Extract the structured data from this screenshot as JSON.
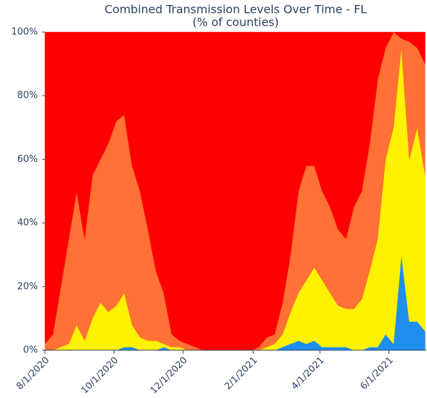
{
  "chart_data": {
    "type": "stacked_area",
    "title": "Combined Transmission Levels Over Time - FL",
    "subtitle": "(% of counties)",
    "x": [
      "2020-08-01",
      "2020-08-08",
      "2020-08-15",
      "2020-08-22",
      "2020-08-29",
      "2020-09-05",
      "2020-09-12",
      "2020-09-19",
      "2020-09-26",
      "2020-10-03",
      "2020-10-10",
      "2020-10-17",
      "2020-10-24",
      "2020-10-31",
      "2020-11-07",
      "2020-11-14",
      "2020-11-21",
      "2020-11-28",
      "2020-12-05",
      "2020-12-12",
      "2020-12-19",
      "2020-12-26",
      "2021-01-02",
      "2021-01-09",
      "2021-01-16",
      "2021-01-23",
      "2021-01-30",
      "2021-02-06",
      "2021-02-13",
      "2021-02-20",
      "2021-02-27",
      "2021-03-06",
      "2021-03-13",
      "2021-03-20",
      "2021-03-27",
      "2021-04-03",
      "2021-04-10",
      "2021-04-17",
      "2021-04-24",
      "2021-05-01",
      "2021-05-08",
      "2021-05-15",
      "2021-05-22",
      "2021-05-29",
      "2021-06-05",
      "2021-06-12",
      "2021-06-19",
      "2021-06-26",
      "2021-07-03"
    ],
    "series": [
      {
        "color": "#1f8ef1",
        "values": [
          0,
          0,
          0,
          0,
          0,
          0,
          0,
          0,
          0,
          0,
          1,
          1,
          0,
          0,
          0,
          1,
          0,
          0,
          0,
          0,
          0,
          0,
          0,
          0,
          0,
          0,
          0,
          0,
          0,
          0,
          1,
          2,
          3,
          2,
          3,
          1,
          1,
          1,
          1,
          0,
          0,
          1,
          1,
          5,
          2,
          30,
          9,
          9,
          6
        ]
      },
      {
        "color": "#fff200",
        "values": [
          0,
          0,
          1,
          2,
          8,
          3,
          10,
          15,
          12,
          14,
          17,
          7,
          4,
          3,
          3,
          1,
          1,
          1,
          0,
          0,
          0,
          0,
          0,
          0,
          0,
          0,
          0,
          0,
          1,
          2,
          4,
          10,
          15,
          20,
          23,
          21,
          17,
          13,
          12,
          13,
          16,
          24,
          34,
          55,
          68,
          65,
          51,
          61,
          49
        ]
      },
      {
        "color": "#ff7134",
        "values": [
          2,
          5,
          19,
          33,
          42,
          32,
          45,
          45,
          53,
          58,
          56,
          50,
          46,
          35,
          22,
          16,
          4,
          2,
          2,
          1,
          0,
          0,
          0,
          0,
          0,
          0,
          0,
          1,
          3,
          3,
          10,
          18,
          32,
          36,
          32,
          28,
          27,
          24,
          22,
          32,
          34,
          40,
          50,
          35,
          30,
          3,
          37,
          25,
          35
        ]
      },
      {
        "color": "#ff0000",
        "values": [
          98,
          95,
          80,
          65,
          50,
          65,
          45,
          40,
          35,
          28,
          26,
          42,
          50,
          62,
          75,
          82,
          95,
          97,
          98,
          99,
          100,
          100,
          100,
          100,
          100,
          100,
          100,
          99,
          96,
          95,
          85,
          70,
          50,
          42,
          42,
          50,
          55,
          62,
          65,
          55,
          50,
          35,
          15,
          5,
          0,
          2,
          3,
          5,
          10
        ]
      }
    ],
    "xlim": [
      "2020-08-01",
      "2021-07-04"
    ],
    "xticks": [
      {
        "value": "2020-08-01",
        "label": "8/1/2020"
      },
      {
        "value": "2020-10-01",
        "label": "10/1/2020"
      },
      {
        "value": "2020-12-01",
        "label": "12/1/2020"
      },
      {
        "value": "2021-02-01",
        "label": "2/1/2021"
      },
      {
        "value": "2021-04-01",
        "label": "4/1/2021"
      },
      {
        "value": "2021-06-01",
        "label": "6/1/2021"
      }
    ],
    "ylim": [
      0,
      100
    ],
    "yticks": [
      {
        "value": 0,
        "label": "0%"
      },
      {
        "value": 20,
        "label": "20%"
      },
      {
        "value": 40,
        "label": "40%"
      },
      {
        "value": 60,
        "label": "60%"
      },
      {
        "value": 80,
        "label": "80%"
      },
      {
        "value": 100,
        "label": "100%"
      }
    ]
  }
}
